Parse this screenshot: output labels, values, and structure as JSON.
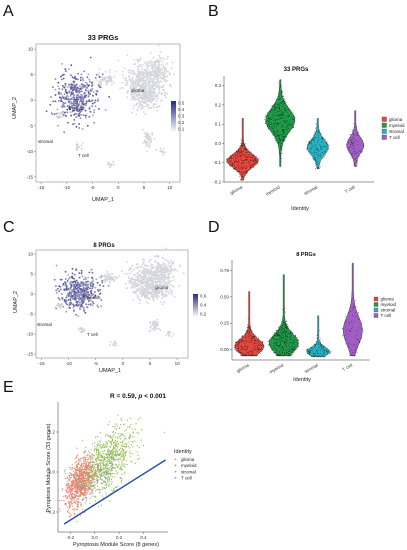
{
  "panels": {
    "a": {
      "letter": "A",
      "title": "33 PRGs",
      "xlabel": "UMAP_1",
      "ylabel": "UMAP_2",
      "xticks": [
        "-15",
        "-10",
        "-5",
        "0",
        "5",
        "10"
      ],
      "yticks": [
        "10",
        "5",
        "0",
        "-5",
        "-10",
        "-15"
      ],
      "cluster_labels": {
        "glioma": "glioma",
        "myeloid": "myeloid",
        "stromal": "stromal",
        "tcell": "T cell"
      },
      "colorbar_ticks": [
        "0.5",
        "0.4",
        "0.3",
        "0.2",
        "0.1"
      ]
    },
    "b": {
      "letter": "B",
      "title": "33 PRGs",
      "xlabel": "Identity",
      "yticks": [
        "0.3",
        "0.2",
        "0.1",
        "0.0",
        "-0.1",
        "-0.2"
      ],
      "categories": [
        "glioma",
        "myeloid",
        "stromal",
        "T cell"
      ]
    },
    "c": {
      "letter": "C",
      "title": "8 PRGs",
      "xlabel": "UMAP_1",
      "ylabel": "UMAP_2",
      "xticks": [
        "-15",
        "-10",
        "-5",
        "0",
        "5",
        "10"
      ],
      "yticks": [
        "10",
        "5",
        "0",
        "-5",
        "-10",
        "-15"
      ],
      "cluster_labels": {
        "glioma": "glioma",
        "myeloid": "myeloid",
        "stromal": "stromal",
        "tcell": "T cell"
      },
      "colorbar_ticks": [
        "0.6",
        "0.4",
        "0.2"
      ]
    },
    "d": {
      "letter": "D",
      "title": "8 PRGs",
      "xlabel": "Identity",
      "yticks": [
        "0.75",
        "0.50",
        "0.25",
        "0.00"
      ],
      "categories": [
        "glioma",
        "myeloid",
        "stromal",
        "T cell"
      ]
    },
    "e": {
      "letter": "E",
      "stat_prefix": "R = 0.59, ",
      "stat_p": "p",
      "stat_suffix": " < 0.001",
      "xlabel": "Pyroptosis Module Score (8 genes)",
      "ylabel": "Pyroptosis Module Score (33 genes)",
      "xticks": [
        "-0.2",
        "0.0",
        "0.2",
        "0.4"
      ],
      "yticks": [
        "0.2",
        "0.0",
        "-0.2"
      ]
    }
  },
  "legend": {
    "title": "Identity",
    "items": [
      {
        "label": "glioma",
        "color": "#e6483e"
      },
      {
        "label": "myeloid",
        "color": "#1f9e4a"
      },
      {
        "label": "stromal",
        "color": "#27b3c4"
      },
      {
        "label": "T cell",
        "color": "#a05ec4"
      }
    ]
  },
  "scatter_legend": {
    "title": "Identity",
    "items": [
      {
        "label": "glioma",
        "color": "#f08070"
      },
      {
        "label": "myeloid",
        "color": "#8db84a"
      },
      {
        "label": "stromal",
        "color": "#4cc0c8"
      },
      {
        "label": "T cell",
        "color": "#b088d8"
      }
    ]
  },
  "chart_data": [
    {
      "type": "scatter",
      "panel": "A",
      "title": "33 PRGs",
      "xlabel": "UMAP_1",
      "ylabel": "UMAP_2",
      "xlim": [
        -16,
        12
      ],
      "ylim": [
        -16,
        11
      ],
      "colorscale": {
        "min_color": "#eeeef6",
        "max_color": "#2b2c8a",
        "ticks": [
          0.1,
          0.2,
          0.3,
          0.4,
          0.5
        ]
      },
      "clusters": [
        "glioma",
        "myeloid",
        "stromal",
        "T cell"
      ]
    },
    {
      "type": "violin",
      "panel": "B",
      "title": "33 PRGs",
      "xlabel": "Identity",
      "categories": [
        "glioma",
        "myeloid",
        "stromal",
        "T cell"
      ],
      "colors": [
        "#e6483e",
        "#1f9e4a",
        "#27b3c4",
        "#a05ec4"
      ],
      "ylim": [
        -0.2,
        0.35
      ]
    },
    {
      "type": "scatter",
      "panel": "C",
      "title": "8 PRGs",
      "xlabel": "UMAP_1",
      "ylabel": "UMAP_2",
      "xlim": [
        -16,
        12
      ],
      "ylim": [
        -16,
        11
      ],
      "colorscale": {
        "min_color": "#eeeef6",
        "max_color": "#2b2c8a",
        "ticks": [
          0.2,
          0.4,
          0.6
        ]
      },
      "clusters": [
        "glioma",
        "myeloid",
        "stromal",
        "T cell"
      ]
    },
    {
      "type": "violin",
      "panel": "D",
      "title": "8 PRGs",
      "xlabel": "Identity",
      "categories": [
        "glioma",
        "myeloid",
        "stromal",
        "T cell"
      ],
      "colors": [
        "#e6483e",
        "#1f9e4a",
        "#27b3c4",
        "#a05ec4"
      ],
      "ylim": [
        -0.1,
        0.85
      ]
    },
    {
      "type": "scatter",
      "panel": "E",
      "xlabel": "Pyroptosis Module Score (8 genes)",
      "ylabel": "Pyroptosis Module Score (33 genes)",
      "xlim": [
        -0.3,
        0.6
      ],
      "ylim": [
        -0.3,
        0.35
      ],
      "r": 0.59,
      "p": "< 0.001",
      "regression": {
        "x": [
          -0.25,
          0.58
        ],
        "y": [
          -0.26,
          0.06
        ],
        "color": "#1f4fa8"
      }
    }
  ]
}
